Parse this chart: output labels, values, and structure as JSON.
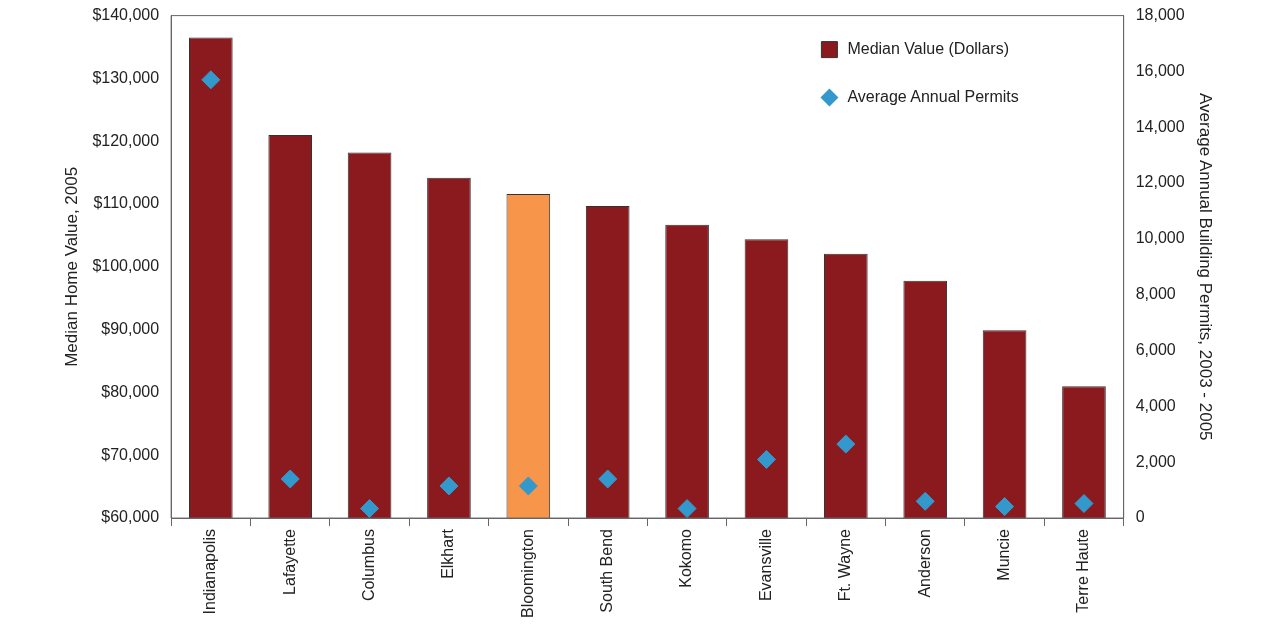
{
  "chart_data": {
    "type": "bar",
    "ylabel": "Median Home Value, 2005",
    "y2label": "Average Annual Building Permits, 2003 - 2005",
    "categories": [
      "Indianapolis",
      "Lafayette",
      "Columbus",
      "Elkhart",
      "Bloomington",
      "South Bend",
      "Kokomo",
      "Evansville",
      "Ft. Wayne",
      "Anderson",
      "Muncie",
      "Terre Haute"
    ],
    "series": [
      {
        "name": "Median Value (Dollars)",
        "color": "#8b1a1e",
        "colors": [
          "#8b1a1e",
          "#8b1a1e",
          "#8b1a1e",
          "#8b1a1e",
          "#f7964a",
          "#8b1a1e",
          "#8b1a1e",
          "#8b1a1e",
          "#8b1a1e",
          "#8b1a1e",
          "#8b1a1e",
          "#8b1a1e"
        ],
        "values": [
          136500,
          121000,
          118200,
          114200,
          111600,
          109700,
          106700,
          104400,
          102100,
          97800,
          89900,
          81000
        ]
      },
      {
        "name": "Average Annual Permits",
        "type": "scatter",
        "axis": "y2",
        "marker": "diamond",
        "color": "#3399cc",
        "x": [
          "Indianapolis",
          "Lafayette",
          "Columbus",
          "Elkhart",
          "Bloomington",
          "South Bend",
          "Kokomo",
          "Evansville",
          "Ft. Wayne",
          "Anderson",
          "Muncie",
          "Terre Haute"
        ],
        "values": [
          15700,
          1400,
          340,
          1150,
          1150,
          1400,
          340,
          2100,
          2650,
          600,
          410,
          520
        ]
      }
    ],
    "ylim": [
      60000,
      140000
    ],
    "yticks": [
      {
        "value": 60000,
        "label": "$60,000"
      },
      {
        "value": 70000,
        "label": "$70,000"
      },
      {
        "value": 80000,
        "label": "$80,000"
      },
      {
        "value": 90000,
        "label": "$90,000"
      },
      {
        "value": 100000,
        "label": "$100,000"
      },
      {
        "value": 110000,
        "label": "$110,000"
      },
      {
        "value": 120000,
        "label": "$120,000"
      },
      {
        "value": 130000,
        "label": "$130,000"
      },
      {
        "value": 140000,
        "label": "$140,000"
      }
    ],
    "y2lim": [
      0,
      18000
    ],
    "y2ticks": [
      0,
      {
        "value": 2000,
        "label": "2,000"
      },
      {
        "value": 4000,
        "label": "4,000"
      },
      {
        "value": 6000,
        "label": "6,000"
      },
      {
        "value": 8000,
        "label": "8,000"
      },
      {
        "value": 10000,
        "label": "10,000"
      },
      {
        "value": 12000,
        "label": "12,000"
      },
      {
        "value": 14000,
        "label": "14,000"
      },
      {
        "value": 16000,
        "label": "16,000"
      },
      {
        "value": 18000,
        "label": "18,000"
      }
    ],
    "grid": false,
    "legend": "top right"
  }
}
